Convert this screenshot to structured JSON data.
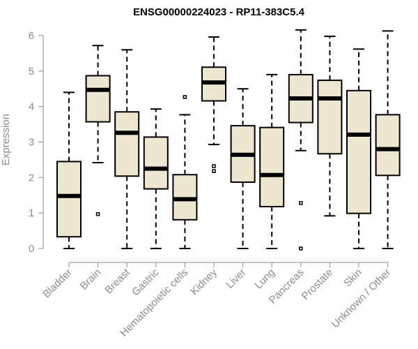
{
  "chart_data": {
    "type": "boxplot",
    "title": "ENSG00000224023 - RP11-383C5.4",
    "ylabel": "Expression",
    "xlabel": "",
    "ylim": [
      0,
      6.2
    ],
    "yticks": [
      "0",
      "1",
      "2",
      "3",
      "4",
      "5",
      "6"
    ],
    "grid": false,
    "box_color": "#ede7cf",
    "categories": [
      "Bladder",
      "Brain",
      "Breast",
      "Gastric",
      "Hematopoietic cells",
      "Kidney",
      "Liver",
      "Lung",
      "Pancreas",
      "Prostate",
      "Skin",
      "Unknown / Other"
    ],
    "boxes": [
      {
        "whislo": 0.0,
        "q1": 0.33,
        "med": 1.48,
        "q3": 2.45,
        "whishi": 4.4,
        "fliers": []
      },
      {
        "whislo": 2.42,
        "q1": 3.57,
        "med": 4.47,
        "q3": 4.87,
        "whishi": 5.72,
        "fliers": [
          0.97
        ]
      },
      {
        "whislo": 0.0,
        "q1": 2.04,
        "med": 3.26,
        "q3": 3.85,
        "whishi": 5.6,
        "fliers": []
      },
      {
        "whislo": 0.0,
        "q1": 1.68,
        "med": 2.25,
        "q3": 3.14,
        "whishi": 3.93,
        "fliers": []
      },
      {
        "whislo": 0.0,
        "q1": 0.81,
        "med": 1.39,
        "q3": 2.08,
        "whishi": 3.77,
        "fliers": [
          4.27
        ]
      },
      {
        "whislo": 2.93,
        "q1": 4.16,
        "med": 4.68,
        "q3": 5.11,
        "whishi": 5.96,
        "fliers": [
          2.32,
          2.18
        ]
      },
      {
        "whislo": 0.0,
        "q1": 1.87,
        "med": 2.64,
        "q3": 3.46,
        "whishi": 4.5,
        "fliers": []
      },
      {
        "whislo": 0.0,
        "q1": 1.18,
        "med": 2.07,
        "q3": 3.41,
        "whishi": 4.9,
        "fliers": []
      },
      {
        "whislo": 2.76,
        "q1": 3.55,
        "med": 4.23,
        "q3": 4.9,
        "whishi": 6.16,
        "fliers": [
          1.28,
          0.0
        ]
      },
      {
        "whislo": 0.92,
        "q1": 2.67,
        "med": 4.23,
        "q3": 4.74,
        "whishi": 5.98,
        "fliers": []
      },
      {
        "whislo": 0.0,
        "q1": 0.99,
        "med": 3.21,
        "q3": 4.45,
        "whishi": 5.62,
        "fliers": []
      },
      {
        "whislo": 0.0,
        "q1": 2.06,
        "med": 2.8,
        "q3": 3.77,
        "whishi": 6.13,
        "fliers": []
      }
    ]
  }
}
